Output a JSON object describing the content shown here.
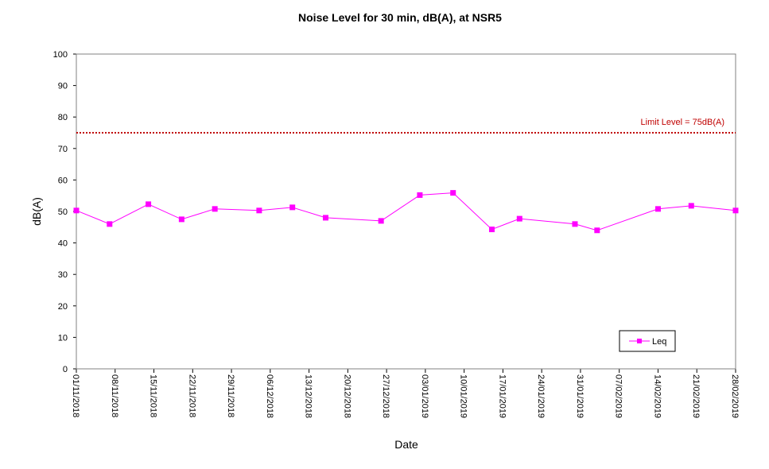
{
  "chart_data": {
    "type": "line",
    "title": "Noise Level for 30 min, dB(A), at NSR5",
    "xlabel": "Date",
    "ylabel": "dB(A)",
    "ylim": [
      0,
      100
    ],
    "yticks": [
      0,
      10,
      20,
      30,
      40,
      50,
      60,
      70,
      80,
      90,
      100
    ],
    "xlim": [
      "2018-11-01",
      "2019-02-28"
    ],
    "xticks": [
      "01/11/2018",
      "08/11/2018",
      "15/11/2018",
      "22/11/2018",
      "29/11/2018",
      "06/12/2018",
      "13/12/2018",
      "20/12/2018",
      "27/12/2018",
      "03/01/2019",
      "10/01/2019",
      "17/01/2019",
      "24/01/2019",
      "31/01/2019",
      "07/02/2019",
      "14/02/2019",
      "21/02/2019",
      "28/02/2019"
    ],
    "grid": false,
    "legend_position": "bottom-right",
    "series": [
      {
        "name": "Leq",
        "color": "#ff00ff",
        "marker": "square",
        "x": [
          "2018-11-01",
          "2018-11-07",
          "2018-11-14",
          "2018-11-20",
          "2018-11-26",
          "2018-12-04",
          "2018-12-10",
          "2018-12-16",
          "2018-12-26",
          "2019-01-02",
          "2019-01-08",
          "2019-01-15",
          "2019-01-20",
          "2019-01-30",
          "2019-02-03",
          "2019-02-14",
          "2019-02-20",
          "2019-02-28"
        ],
        "y": [
          50.3,
          46.0,
          52.3,
          47.5,
          50.8,
          50.3,
          51.3,
          48.0,
          47.0,
          55.2,
          55.9,
          44.3,
          47.7,
          46.0,
          44.0,
          50.8,
          51.8,
          50.3
        ]
      }
    ],
    "reference_line": {
      "label": "Limit Level  = 75dB(A)",
      "value": 75,
      "color": "#c00000",
      "style": "dotted"
    }
  }
}
